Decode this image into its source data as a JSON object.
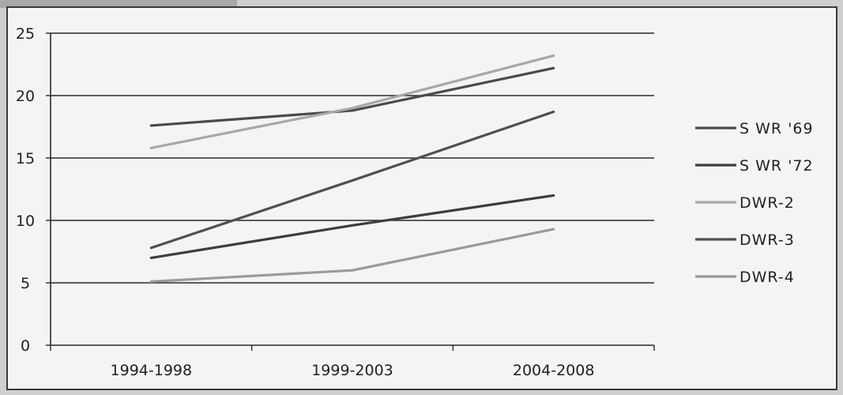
{
  "chart_data": {
    "type": "line",
    "title": "",
    "xlabel": "",
    "ylabel": "",
    "categories": [
      "1994-1998",
      "1999-2003",
      "2004-2008"
    ],
    "y_ticks": [
      "0",
      "5",
      "10",
      "15",
      "20",
      "25"
    ],
    "ylim": [
      0,
      25
    ],
    "grid": true,
    "legend_position": "right",
    "series": [
      {
        "name": "S WR '69",
        "values": [
          17.6,
          18.8,
          22.2
        ],
        "color": "#4a4a4a"
      },
      {
        "name": "S WR '72",
        "values": [
          7.0,
          9.6,
          12.0
        ],
        "color": "#3d3d3d"
      },
      {
        "name": "DWR-2",
        "values": [
          15.8,
          19.0,
          23.2
        ],
        "color": "#a8a8a8"
      },
      {
        "name": "DWR-3",
        "values": [
          7.8,
          13.2,
          18.7
        ],
        "color": "#505050"
      },
      {
        "name": "DWR-4",
        "values": [
          5.1,
          6.0,
          9.3
        ],
        "color": "#9a9a9a"
      }
    ]
  }
}
